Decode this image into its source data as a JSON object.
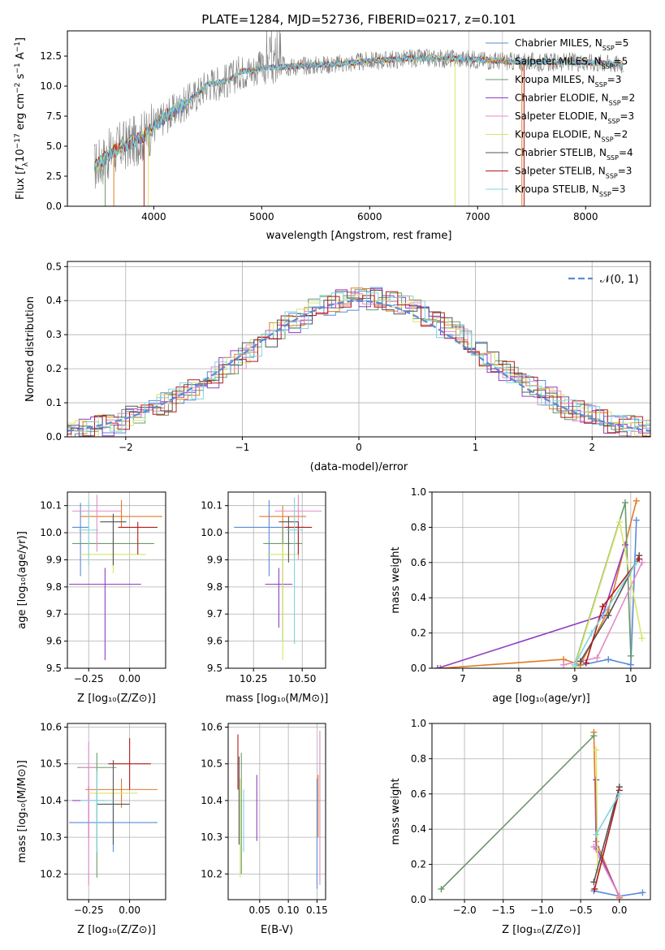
{
  "figure": {
    "title": "PLATE=1284, MJD=52736, FIBERID=0217, z=0.101"
  },
  "colors": {
    "tab": [
      "#5b8bd6",
      "#e07b24",
      "#6a9a6a",
      "#8f3fc4",
      "#e48bc6",
      "#d9e56a",
      "#555555",
      "#b11b1b",
      "#7fd4dd"
    ],
    "spectrum_data": "#7f7f7f",
    "gaussian": "#5b8bd6"
  },
  "chart_data": [
    {
      "type": "line",
      "title": "PLATE=1284, MJD=52736, FIBERID=0217, z=0.101",
      "xlabel": "wavelength [Angstrom, rest frame]",
      "ylabel_parts": [
        "Flux [",
        "f",
        "λ",
        "10",
        "−17",
        " erg cm",
        "−2",
        " s",
        "−1",
        " A",
        "−1",
        "]"
      ],
      "xlim": [
        3200,
        8600
      ],
      "ylim": [
        0,
        14.6
      ],
      "xticks": [
        "4000",
        "5000",
        "6000",
        "7000",
        "8000"
      ],
      "yticks": [
        "0.0",
        "2.5",
        "5.0",
        "7.5",
        "10.0",
        "12.5"
      ],
      "continuum": {
        "x": [
          3450,
          3600,
          3700,
          3800,
          3900,
          4000,
          4100,
          4200,
          4300,
          4400,
          4500,
          4600,
          4700,
          4800,
          4900,
          5000,
          5200,
          5400,
          5600,
          5800,
          6000,
          6200,
          6400,
          6600,
          6800,
          7000,
          7200,
          7400,
          7600,
          7800,
          8000,
          8200,
          8350
        ],
        "y": [
          3.3,
          4.4,
          5.0,
          5.3,
          5.8,
          6.6,
          7.4,
          8.0,
          8.6,
          9.3,
          10.2,
          10.3,
          10.5,
          11.2,
          11.3,
          11.5,
          11.6,
          11.7,
          11.8,
          11.9,
          12.1,
          12.2,
          12.3,
          12.3,
          12.3,
          12.2,
          12.1,
          12.0,
          12.0,
          12.0,
          12.0,
          11.9,
          11.8
        ]
      },
      "legend": [
        {
          "name": "Chabrier MILES",
          "n": "5"
        },
        {
          "name": "Salpeter MILES",
          "n": "5"
        },
        {
          "name": "Kroupa MILES",
          "n": "3"
        },
        {
          "name": "Chabrier ELODIE",
          "n": "2"
        },
        {
          "name": "Salpeter ELODIE",
          "n": "3"
        },
        {
          "name": "Kroupa ELODIE",
          "n": "2"
        },
        {
          "name": "Chabrier STELIB",
          "n": "4"
        },
        {
          "name": "Salpeter STELIB",
          "n": "3"
        },
        {
          "name": "Kroupa STELIB",
          "n": "3"
        }
      ],
      "legend_prefix": "N",
      "legend_sub": "SSP"
    },
    {
      "type": "histogram",
      "xlabel": "(data-model)/error",
      "ylabel": "Normed distribution",
      "xlim": [
        -2.5,
        2.5
      ],
      "ylim": [
        0,
        0.515
      ],
      "xticks": [
        {
          "v": -2,
          "t": "−2"
        },
        {
          "v": -1,
          "t": "−1"
        },
        {
          "v": 0,
          "t": "0"
        },
        {
          "v": 1,
          "t": "1"
        },
        {
          "v": 2,
          "t": "2"
        }
      ],
      "yticks": [
        "0.0",
        "0.1",
        "0.2",
        "0.3",
        "0.4",
        "0.5"
      ],
      "legend": "𝒩(0, 1)",
      "gaussian": {
        "mu": 0,
        "sigma": 1
      }
    },
    {
      "type": "errorbar",
      "xlabel": "Z [log₁₀(Z/Z⊙)]",
      "ylabel": "age  [log₁₀(age/yr)]",
      "xlim": [
        -0.38,
        0.22
      ],
      "ylim": [
        9.5,
        10.15
      ],
      "xticks": [
        "−0.25",
        "0.00"
      ],
      "yticks": [
        "9.5",
        "9.6",
        "9.7",
        "9.8",
        "9.9",
        "10.0",
        "10.1"
      ],
      "points": [
        {
          "x": -0.3,
          "y": 10.02,
          "xerr": 0.05,
          "ylo": 9.84,
          "yhi": 10.11
        },
        {
          "x": -0.05,
          "y": 10.06,
          "xerr": 0.25,
          "ylo": 10.02,
          "yhi": 10.12
        },
        {
          "x": -0.1,
          "y": 9.96,
          "xerr": 0.25,
          "ylo": 9.87,
          "yhi": 10.06
        },
        {
          "x": -0.15,
          "y": 9.81,
          "xerr": 0.22,
          "ylo": 9.53,
          "yhi": 9.87
        },
        {
          "x": -0.2,
          "y": 10.08,
          "xerr": 0.15,
          "ylo": 9.93,
          "yhi": 10.14
        },
        {
          "x": -0.1,
          "y": 9.92,
          "xerr": 0.2,
          "ylo": 9.85,
          "yhi": 10.0
        },
        {
          "x": -0.1,
          "y": 10.04,
          "xerr": 0.08,
          "ylo": 9.88,
          "yhi": 10.07
        },
        {
          "x": 0.05,
          "y": 10.02,
          "xerr": 0.12,
          "ylo": 9.92,
          "yhi": 10.04
        },
        {
          "x": -0.25,
          "y": 10.01,
          "xerr": 0.06,
          "ylo": 9.88,
          "yhi": 10.12
        }
      ]
    },
    {
      "type": "errorbar",
      "xlabel": "mass [log₁₀(M/M⊙)]",
      "ylabel": "",
      "xlim": [
        10.12,
        10.62
      ],
      "ylim": [
        9.5,
        10.15
      ],
      "xticks": [
        "10.25",
        "10.50"
      ],
      "xtickvals": [
        10.25,
        10.5
      ],
      "yticks": [
        "9.5",
        "9.6",
        "9.7",
        "9.8",
        "9.9",
        "10.0",
        "10.1"
      ],
      "points": [
        {
          "x": 10.33,
          "y": 10.02,
          "xerr": 0.18,
          "ylo": 9.84,
          "yhi": 10.12
        },
        {
          "x": 10.4,
          "y": 10.06,
          "xerr": 0.12,
          "ylo": 9.95,
          "yhi": 10.1
        },
        {
          "x": 10.4,
          "y": 9.96,
          "xerr": 0.1,
          "ylo": 9.6,
          "yhi": 10.02
        },
        {
          "x": 10.38,
          "y": 9.81,
          "xerr": 0.07,
          "ylo": 9.65,
          "yhi": 9.87
        },
        {
          "x": 10.48,
          "y": 10.08,
          "xerr": 0.12,
          "ylo": 9.9,
          "yhi": 10.14
        },
        {
          "x": 10.4,
          "y": 9.92,
          "xerr": 0.08,
          "ylo": 9.53,
          "yhi": 9.96
        },
        {
          "x": 10.43,
          "y": 10.04,
          "xerr": 0.05,
          "ylo": 9.89,
          "yhi": 10.06
        },
        {
          "x": 10.48,
          "y": 10.02,
          "xerr": 0.07,
          "ylo": 9.92,
          "yhi": 10.04
        },
        {
          "x": 10.46,
          "y": 10.01,
          "xerr": 0.04,
          "ylo": 9.59,
          "yhi": 10.13
        }
      ]
    },
    {
      "type": "line",
      "xlabel": "age  [log₁₀(age/yr)]",
      "ylabel": "mass weight",
      "xlim": [
        6.45,
        10.35
      ],
      "ylim": [
        0,
        1.0
      ],
      "xticks": [
        "7",
        "8",
        "9",
        "10"
      ],
      "xtickvals": [
        7,
        8,
        9,
        10
      ],
      "yticks": [
        "0.0",
        "0.2",
        "0.4",
        "0.6",
        "0.8",
        "1.0"
      ],
      "series": [
        {
          "x": [
            9.0,
            9.6,
            10.0,
            10.1
          ],
          "y": [
            0.01,
            0.05,
            0.02,
            0.84
          ]
        },
        {
          "x": [
            6.6,
            8.8,
            9.1,
            9.6,
            10.1
          ],
          "y": [
            0.0,
            0.05,
            0.02,
            0.33,
            0.95
          ]
        },
        {
          "x": [
            9.0,
            9.9,
            10.0
          ],
          "y": [
            0.02,
            0.94,
            0.07
          ]
        },
        {
          "x": [
            6.55,
            9.5,
            9.9
          ],
          "y": [
            0.0,
            0.3,
            0.7
          ]
        },
        {
          "x": [
            8.8,
            9.4,
            10.2
          ],
          "y": [
            0.02,
            0.06,
            0.6
          ]
        },
        {
          "x": [
            9.0,
            9.8,
            10.2
          ],
          "y": [
            0.01,
            0.83,
            0.17
          ]
        },
        {
          "x": [
            9.1,
            9.6,
            10.15
          ],
          "y": [
            0.04,
            0.3,
            0.64
          ]
        },
        {
          "x": [
            9.2,
            9.5,
            10.15
          ],
          "y": [
            0.03,
            0.35,
            0.62
          ]
        },
        {
          "x": [
            9.0,
            9.3,
            10.1
          ],
          "y": [
            0.02,
            0.2,
            0.6
          ]
        }
      ]
    },
    {
      "type": "errorbar",
      "xlabel": "Z [log₁₀(Z/Z⊙)]",
      "ylabel": "mass [log₁₀(M/M⊙)]",
      "xlim": [
        -0.38,
        0.22
      ],
      "ylim": [
        10.13,
        10.61
      ],
      "xticks": [
        "−0.25",
        "0.00"
      ],
      "xtickvals": [
        -0.25,
        0
      ],
      "yticks": [
        "10.2",
        "10.3",
        "10.4",
        "10.5",
        "10.6"
      ],
      "ytickvals": [
        10.2,
        10.3,
        10.4,
        10.5,
        10.6
      ],
      "points": [
        {
          "x": -0.1,
          "y": 10.34,
          "xerr": 0.27,
          "ylo": 10.26,
          "yhi": 10.42
        },
        {
          "x": -0.05,
          "y": 10.43,
          "xerr": 0.22,
          "ylo": 10.38,
          "yhi": 10.46
        },
        {
          "x": -0.2,
          "y": 10.49,
          "xerr": 0.12,
          "ylo": 10.19,
          "yhi": 10.53
        },
        {
          "x": -0.25,
          "y": 10.4,
          "xerr": 0.1,
          "ylo": 10.3,
          "yhi": 10.44
        },
        {
          "x": -0.25,
          "y": 10.49,
          "xerr": 0.05,
          "ylo": 10.17,
          "yhi": 10.56
        },
        {
          "x": -0.1,
          "y": 10.42,
          "xerr": 0.15,
          "ylo": 10.37,
          "yhi": 10.44
        },
        {
          "x": -0.1,
          "y": 10.39,
          "xerr": 0.1,
          "ylo": 10.28,
          "yhi": 10.51
        },
        {
          "x": 0.0,
          "y": 10.5,
          "xerr": 0.13,
          "ylo": 10.43,
          "yhi": 10.57
        },
        {
          "x": -0.2,
          "y": 10.4,
          "xerr": 0.1,
          "ylo": 10.26,
          "yhi": 10.48
        }
      ]
    },
    {
      "type": "errorbar",
      "xlabel": "E(B-V)",
      "ylabel": "",
      "xlim": [
        -0.005,
        0.165
      ],
      "ylim": [
        10.13,
        10.61
      ],
      "xticks": [
        "0.05",
        "0.10",
        "0.15"
      ],
      "xtickvals": [
        0.05,
        0.1,
        0.15
      ],
      "yticks": [
        "10.2",
        "10.3",
        "10.4",
        "10.5",
        "10.6"
      ],
      "ytickvals": [
        10.2,
        10.3,
        10.4,
        10.5,
        10.6
      ],
      "points": [
        {
          "x": 0.15,
          "y": 10.34,
          "xerr": 0,
          "ylo": 10.16,
          "yhi": 10.46
        },
        {
          "x": 0.152,
          "y": 10.43,
          "xerr": 0,
          "ylo": 10.3,
          "yhi": 10.47
        },
        {
          "x": 0.018,
          "y": 10.49,
          "xerr": 0,
          "ylo": 10.2,
          "yhi": 10.53
        },
        {
          "x": 0.045,
          "y": 10.4,
          "xerr": 0,
          "ylo": 10.29,
          "yhi": 10.47
        },
        {
          "x": 0.155,
          "y": 10.49,
          "xerr": 0,
          "ylo": 10.17,
          "yhi": 10.59
        },
        {
          "x": 0.016,
          "y": 10.42,
          "xerr": 0,
          "ylo": 10.19,
          "yhi": 10.46
        },
        {
          "x": 0.014,
          "y": 10.39,
          "xerr": 0,
          "ylo": 10.28,
          "yhi": 10.52
        },
        {
          "x": 0.012,
          "y": 10.5,
          "xerr": 0,
          "ylo": 10.43,
          "yhi": 10.58
        },
        {
          "x": 0.022,
          "y": 10.4,
          "xerr": 0,
          "ylo": 10.26,
          "yhi": 10.43
        }
      ]
    },
    {
      "type": "line",
      "xlabel": "Z [log₁₀(Z/Z⊙)]",
      "ylabel": "mass weight",
      "xlim": [
        -2.42,
        0.4
      ],
      "ylim": [
        0,
        1.0
      ],
      "xticks": [
        "−2.0",
        "−1.5",
        "−1.0",
        "−0.5",
        "0.0"
      ],
      "xtickvals": [
        -2.0,
        -1.5,
        -1.0,
        -0.5,
        0.0
      ],
      "yticks": [
        "0.0",
        "0.2",
        "0.4",
        "0.6",
        "0.8",
        "1.0"
      ],
      "series": [
        {
          "x": [
            -0.33,
            0.0,
            0.3
          ],
          "y": [
            0.05,
            0.02,
            0.04
          ]
        },
        {
          "x": [
            -0.33,
            -0.3,
            0.0
          ],
          "y": [
            0.95,
            0.33,
            0.01
          ]
        },
        {
          "x": [
            -2.3,
            -0.33
          ],
          "y": [
            0.06,
            0.93
          ]
        },
        {
          "x": [
            -0.3,
            -0.3,
            0.0
          ],
          "y": [
            0.68,
            0.3,
            0.02
          ]
        },
        {
          "x": [
            -0.33,
            0.0
          ],
          "y": [
            0.3,
            0.02
          ]
        },
        {
          "x": [
            -0.3,
            -0.28
          ],
          "y": [
            0.85,
            0.17
          ]
        },
        {
          "x": [
            -0.33,
            0.0
          ],
          "y": [
            0.1,
            0.64
          ]
        },
        {
          "x": [
            -0.32,
            0.0
          ],
          "y": [
            0.06,
            0.62
          ]
        },
        {
          "x": [
            -0.3,
            0.0
          ],
          "y": [
            0.37,
            0.6
          ]
        }
      ]
    }
  ]
}
